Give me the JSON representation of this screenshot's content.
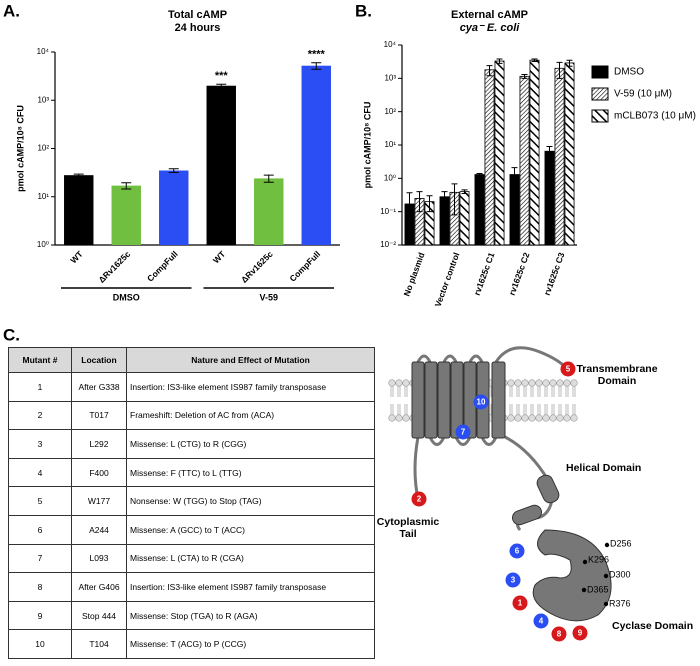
{
  "panel_labels": [
    "A.",
    "B.",
    "C."
  ],
  "chart_data": [
    {
      "type": "bar",
      "title": "Total cAMP",
      "subtitle": "24 hours",
      "y_label": "pmol cAMP/10⁸ CFU",
      "log_y": true,
      "ylim": [
        1,
        10000
      ],
      "yticks": [
        {
          "value": 1,
          "label": "10⁰"
        },
        {
          "value": 10,
          "label": "10¹"
        },
        {
          "value": 100,
          "label": "10²"
        },
        {
          "value": 1000,
          "label": "10³"
        },
        {
          "value": 10000,
          "label": "10⁴"
        }
      ],
      "categories": [
        "WT",
        "ΔRv1625c",
        "CompFull",
        "WT",
        "ΔRv1625c",
        "CompFull"
      ],
      "values": [
        28,
        17,
        35,
        2000,
        24,
        5200
      ],
      "errors": [
        1.5,
        2.5,
        3,
        150,
        4,
        800
      ],
      "colors": [
        "#000000",
        "#70bf41",
        "#2b4ef4",
        "#000000",
        "#70bf41",
        "#2b4ef4"
      ],
      "annotations": [
        null,
        null,
        null,
        "***",
        null,
        "****"
      ],
      "group_labels": [
        "DMSO",
        "V-59"
      ]
    },
    {
      "type": "bar",
      "title": "External cAMP",
      "subtitle": "cya⁻ E. coli",
      "y_label": "pmol cAMP/10⁸ CFU",
      "log_y": true,
      "ylim": [
        0.01,
        10000
      ],
      "yticks": [
        {
          "value": 0.01,
          "label": "10⁻²"
        },
        {
          "value": 0.1,
          "label": "10⁻¹"
        },
        {
          "value": 1,
          "label": "10⁰"
        },
        {
          "value": 10,
          "label": "10¹"
        },
        {
          "value": 100,
          "label": "10²"
        },
        {
          "value": 1000,
          "label": "10³"
        },
        {
          "value": 10000,
          "label": "10⁴"
        }
      ],
      "categories": [
        "No plasmid",
        "Vector control",
        "rv1625c C1",
        "rv1625c C2",
        "rv1625c C3"
      ],
      "legend": "right",
      "series": [
        {
          "name": "DMSO",
          "color": "#000000",
          "hatch": "none",
          "values": [
            0.17,
            0.28,
            1.3,
            1.3,
            6.5
          ],
          "errors": [
            0.2,
            0.12,
            0.1,
            0.8,
            2.5
          ]
        },
        {
          "name": "V-59 (10 μM)",
          "color": "#000000",
          "hatch": "dense",
          "values": [
            0.25,
            0.38,
            1800,
            1150,
            2000
          ],
          "errors": [
            0.15,
            0.3,
            600,
            150,
            1000
          ]
        },
        {
          "name": "mCLB073 (10 μM)",
          "color": "#000000",
          "hatch": "wide",
          "values": [
            0.2,
            0.4,
            3300,
            3500,
            2900
          ],
          "errors": [
            0.1,
            0.05,
            500,
            300,
            600
          ]
        }
      ]
    }
  ],
  "table": {
    "headers": [
      "Mutant #",
      "Location",
      "Nature and Effect of Mutation"
    ],
    "rows": [
      [
        "1",
        "After G338",
        "Insertion: IS3-like element IS987 family transposase"
      ],
      [
        "2",
        "T017",
        "Frameshift: Deletion of AC from (ACA)"
      ],
      [
        "3",
        "L292",
        "Missense: L (CTG) to R (CGG)"
      ],
      [
        "4",
        "F400",
        "Missense: F (TTC) to L (TTG)"
      ],
      [
        "5",
        "W177",
        "Nonsense: W (TGG) to Stop (TAG)"
      ],
      [
        "6",
        "A244",
        "Missense: A (GCC) to T (ACC)"
      ],
      [
        "7",
        "L093",
        "Missense: L (CTA) to R (CGA)"
      ],
      [
        "8",
        "After G406",
        "Insertion: IS3-like element IS987 family  transposase"
      ],
      [
        "9",
        "Stop 444",
        "Missense: Stop (TGA) to R (AGA)"
      ],
      [
        "10",
        "T104",
        "Missense: T (ACG) to P (CCG)"
      ]
    ]
  },
  "diagram": {
    "domains": [
      [
        "Transmembrane",
        "Domain"
      ],
      [
        "Helical Domain"
      ],
      [
        "Cytoplasmic",
        "Tail"
      ],
      [
        "Cyclase Domain"
      ]
    ],
    "residues": [
      "D256",
      "K296",
      "D300",
      "D365",
      "R376"
    ],
    "markers": [
      {
        "label": "5",
        "color": "#d7191c"
      },
      {
        "label": "10",
        "color": "#2b4ef4"
      },
      {
        "label": "7",
        "color": "#2b4ef4"
      },
      {
        "label": "2",
        "color": "#d7191c"
      },
      {
        "label": "6",
        "color": "#2b4ef4"
      },
      {
        "label": "3",
        "color": "#2b4ef4"
      },
      {
        "label": "1",
        "color": "#d7191c"
      },
      {
        "label": "4",
        "color": "#2b4ef4"
      },
      {
        "label": "8",
        "color": "#d7191c"
      },
      {
        "label": "9",
        "color": "#d7191c"
      }
    ]
  }
}
